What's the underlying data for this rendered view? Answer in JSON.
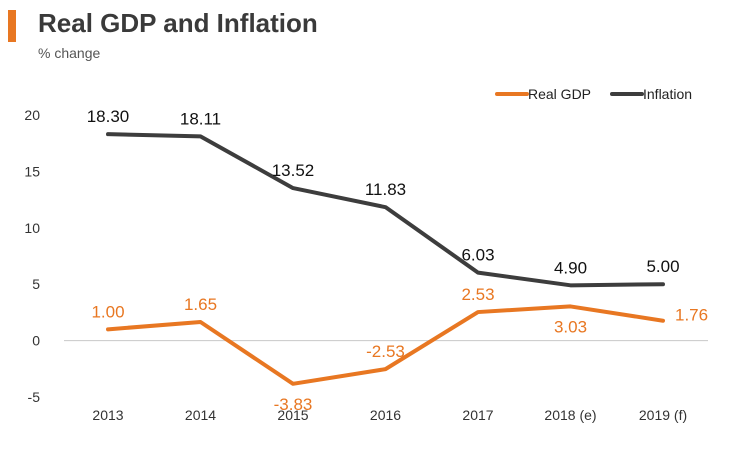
{
  "chart_data": {
    "type": "line",
    "title": "Real GDP and Inflation",
    "subtitle": "% change",
    "categories": [
      "2013",
      "2014",
      "2015",
      "2016",
      "2017",
      "2018 (e)",
      "2019 (f)"
    ],
    "series": [
      {
        "name": "Real GDP",
        "color": "#e87722",
        "values": [
          1.0,
          1.65,
          -3.83,
          -2.53,
          2.53,
          3.03,
          1.76
        ],
        "labels": [
          "1.00",
          "1.65",
          "-3.83",
          "-2.53",
          "2.53",
          "3.03",
          "1.76"
        ],
        "label_positions": [
          "above",
          "above",
          "below",
          "above",
          "above",
          "below",
          "right"
        ]
      },
      {
        "name": "Inflation",
        "color": "#3d3d3d",
        "values": [
          18.3,
          18.11,
          13.52,
          11.83,
          6.03,
          4.9,
          5.0
        ],
        "labels": [
          "18.30",
          "18.11",
          "13.52",
          "11.83",
          "6.03",
          "4.90",
          "5.00"
        ],
        "label_positions": [
          "above",
          "above",
          "above",
          "above",
          "above",
          "above",
          "above"
        ]
      }
    ],
    "ylim": [
      -5,
      20
    ],
    "yticks": [
      "-5",
      "0",
      "5",
      "10",
      "15",
      "20"
    ],
    "xlabel": "",
    "ylabel": "",
    "legend": "top-right",
    "grid": false
  }
}
